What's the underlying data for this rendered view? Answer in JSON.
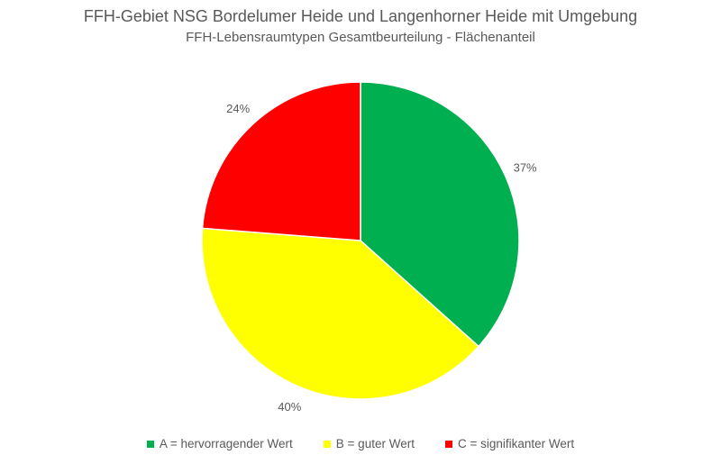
{
  "chart_data": {
    "type": "pie",
    "title": "FFH-Gebiet NSG Bordelumer Heide und Langenhorner Heide mit Umgebung",
    "subtitle": "FFH-Lebensraumtypen Gesamtbeurteilung - Flächenanteil",
    "slices": [
      {
        "name": "A = hervorragender Wert",
        "value": 37,
        "label": "37%",
        "color": "#00b050"
      },
      {
        "name": "B = guter Wert",
        "value": 40,
        "label": "40%",
        "color": "#ffff00"
      },
      {
        "name": "C = signifikanter Wert",
        "value": 24,
        "label": "24%",
        "color": "#ff0000"
      }
    ],
    "legend_position": "bottom"
  }
}
